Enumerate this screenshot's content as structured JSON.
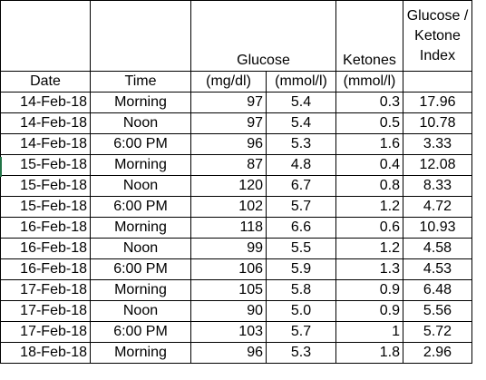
{
  "headers": {
    "glucose_group": "Glucose",
    "ketones": "Ketones",
    "index_line1": "Glucose /",
    "index_line2": "Ketone",
    "index_line3": "Index",
    "date": "Date",
    "time": "Time",
    "mgdl": "(mg/dl)",
    "mmol_glucose": "(mmol/l)",
    "mmol_ketones": "(mmol/l)"
  },
  "rows": [
    {
      "date": "14-Feb-18",
      "time": "Morning",
      "mgdl": "97",
      "mmol": "5.4",
      "ketones": "0.3",
      "index": "17.96"
    },
    {
      "date": "14-Feb-18",
      "time": "Noon",
      "mgdl": "97",
      "mmol": "5.4",
      "ketones": "0.5",
      "index": "10.78"
    },
    {
      "date": "14-Feb-18",
      "time": "6:00 PM",
      "mgdl": "96",
      "mmol": "5.3",
      "ketones": "1.6",
      "index": "3.33"
    },
    {
      "date": "15-Feb-18",
      "time": "Morning",
      "mgdl": "87",
      "mmol": "4.8",
      "ketones": "0.4",
      "index": "12.08"
    },
    {
      "date": "15-Feb-18",
      "time": "Noon",
      "mgdl": "120",
      "mmol": "6.7",
      "ketones": "0.8",
      "index": "8.33"
    },
    {
      "date": "15-Feb-18",
      "time": "6:00 PM",
      "mgdl": "102",
      "mmol": "5.7",
      "ketones": "1.2",
      "index": "4.72"
    },
    {
      "date": "16-Feb-18",
      "time": "Morning",
      "mgdl": "118",
      "mmol": "6.6",
      "ketones": "0.6",
      "index": "10.93"
    },
    {
      "date": "16-Feb-18",
      "time": "Noon",
      "mgdl": "99",
      "mmol": "5.5",
      "ketones": "1.2",
      "index": "4.58"
    },
    {
      "date": "16-Feb-18",
      "time": "6:00 PM",
      "mgdl": "106",
      "mmol": "5.9",
      "ketones": "1.3",
      "index": "4.53"
    },
    {
      "date": "17-Feb-18",
      "time": "Morning",
      "mgdl": "105",
      "mmol": "5.8",
      "ketones": "0.9",
      "index": "6.48"
    },
    {
      "date": "17-Feb-18",
      "time": "Noon",
      "mgdl": "90",
      "mmol": "5.0",
      "ketones": "0.9",
      "index": "5.56"
    },
    {
      "date": "17-Feb-18",
      "time": "6:00 PM",
      "mgdl": "103",
      "mmol": "5.7",
      "ketones": "1",
      "index": "5.72"
    },
    {
      "date": "18-Feb-18",
      "time": "Morning",
      "mgdl": "96",
      "mmol": "5.3",
      "ketones": "1.8",
      "index": "2.96"
    }
  ],
  "colors": {
    "gridline": "#000000",
    "selection_accent": "#217346"
  }
}
